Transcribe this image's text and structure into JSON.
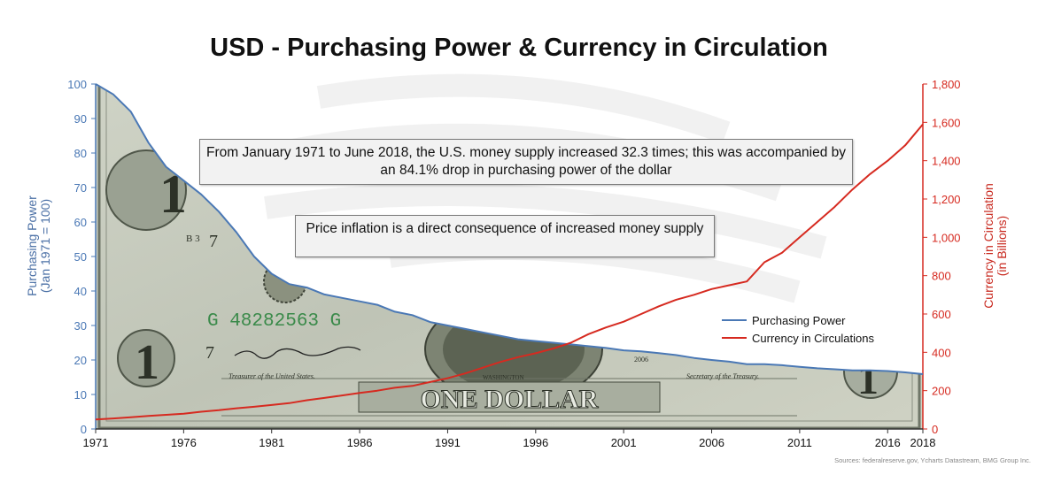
{
  "chart_data": {
    "type": "line",
    "title": "USD - Purchasing Power & Currency in Circulation",
    "ylabel_left": [
      "Purchasing Power",
      "(Jan 1971 = 100)"
    ],
    "ylabel_right": [
      "Currency in Circulation",
      "(in Billions)"
    ],
    "x_ticks": [
      "1971",
      "1976",
      "1981",
      "1986",
      "1991",
      "1996",
      "2001",
      "2006",
      "2011",
      "2016",
      "2018"
    ],
    "xlim": [
      1971,
      2018
    ],
    "y_left_ticks": [
      "0",
      "10",
      "20",
      "30",
      "40",
      "50",
      "60",
      "70",
      "80",
      "90",
      "100"
    ],
    "y_left_lim": [
      0,
      100
    ],
    "y_right_ticks": [
      "0",
      "200",
      "400",
      "600",
      "800",
      "1,000",
      "1,200",
      "1,400",
      "1,600",
      "1,800"
    ],
    "y_right_lim": [
      0,
      1800
    ],
    "legend_position": "right",
    "series": [
      {
        "name": "Purchasing Power",
        "axis": "left",
        "color": "#4a78b5",
        "x": [
          1971,
          1972,
          1973,
          1974,
          1975,
          1976,
          1977,
          1978,
          1979,
          1980,
          1981,
          1982,
          1983,
          1984,
          1985,
          1986,
          1987,
          1988,
          1989,
          1990,
          1991,
          1992,
          1993,
          1994,
          1995,
          1996,
          1997,
          1998,
          1999,
          2000,
          2001,
          2002,
          2003,
          2004,
          2005,
          2006,
          2007,
          2008,
          2009,
          2010,
          2011,
          2012,
          2013,
          2014,
          2015,
          2016,
          2017,
          2018
        ],
        "values": [
          100,
          97,
          92,
          83,
          76,
          72,
          68,
          63,
          57,
          50,
          45,
          42,
          41,
          39,
          38,
          37,
          36,
          34,
          33,
          31,
          30,
          29,
          28,
          27,
          26,
          25.5,
          25,
          24.5,
          24,
          23.5,
          22.8,
          22.5,
          22,
          21.4,
          20.6,
          20,
          19.5,
          18.8,
          18.8,
          18.5,
          18,
          17.6,
          17.3,
          17,
          17,
          16.8,
          16.4,
          15.9
        ]
      },
      {
        "name": "Currency in Circulations",
        "axis": "right",
        "color": "#d62a20",
        "x": [
          1971,
          1972,
          1973,
          1974,
          1975,
          1976,
          1977,
          1978,
          1979,
          1980,
          1981,
          1982,
          1983,
          1984,
          1985,
          1986,
          1987,
          1988,
          1989,
          1990,
          1991,
          1992,
          1993,
          1994,
          1995,
          1996,
          1997,
          1998,
          1999,
          2000,
          2001,
          2002,
          2003,
          2004,
          2005,
          2006,
          2007,
          2008,
          2009,
          2010,
          2011,
          2012,
          2013,
          2014,
          2015,
          2016,
          2017,
          2018
        ],
        "values": [
          50,
          55,
          61,
          68,
          74,
          80,
          90,
          98,
          108,
          116,
          125,
          135,
          150,
          162,
          175,
          188,
          200,
          215,
          225,
          245,
          265,
          290,
          320,
          350,
          375,
          395,
          420,
          450,
          495,
          530,
          560,
          600,
          640,
          675,
          700,
          730,
          750,
          770,
          870,
          920,
          1000,
          1080,
          1160,
          1250,
          1330,
          1400,
          1480,
          1590
        ]
      }
    ]
  },
  "annotations": {
    "note1": "From January 1971 to June 2018, the U.S. money supply increased 32.3 times; this was accompanied by an 84.1% drop in purchasing power of the dollar",
    "note2": "Price inflation is a direct consequence of increased money supply"
  },
  "background_text": {
    "serial": "G 48282563 G",
    "denomination": "ONE DOLLAR",
    "bill_city": "WASHINGTON",
    "series_year": "2006",
    "letter_code": "B 3",
    "number_7": "7",
    "treasurer": "Treasurer of the United States.",
    "secretary": "Secretary of the Treasury.",
    "numeral_one": "1"
  },
  "source": "Sources: federalreserve.gov, Ycharts Datastream, BMG Group Inc."
}
